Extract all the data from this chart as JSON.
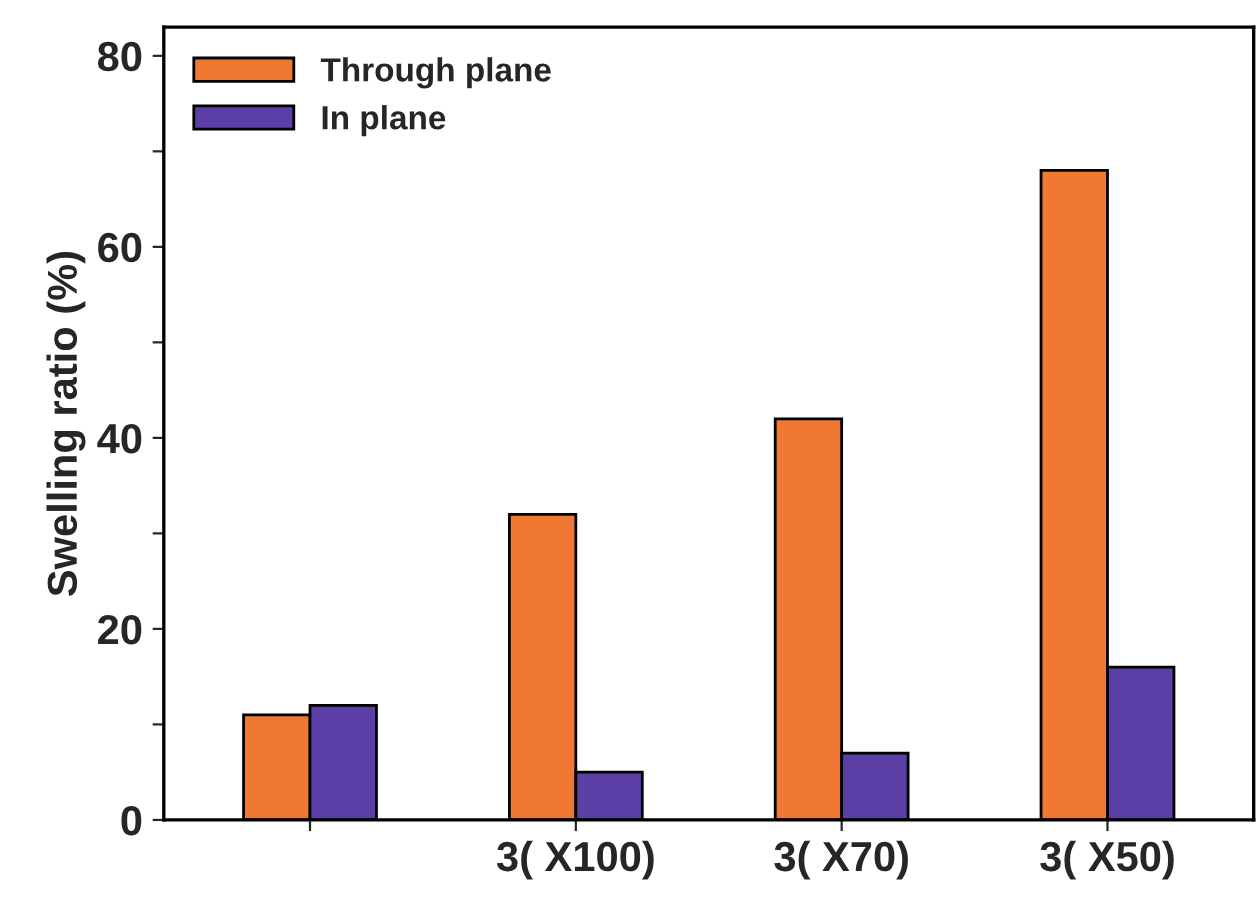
{
  "chart_data": {
    "type": "bar",
    "ylabel": "Swelling ratio (%)",
    "categories": [
      null,
      "3( X100)",
      "3( X70)",
      "3( X50)"
    ],
    "series": [
      {
        "name": "Through plane",
        "color": "#f07832",
        "values": [
          11,
          32,
          42,
          68
        ]
      },
      {
        "name": "In plane",
        "color": "#5b3fa6",
        "values": [
          12,
          5,
          7,
          16
        ]
      }
    ],
    "ylim": [
      0,
      83
    ],
    "yticks": [
      0,
      {
        "value": 10,
        "label": null
      },
      20,
      {
        "value": 30,
        "label": null
      },
      40,
      {
        "value": 50,
        "label": null
      },
      60,
      {
        "value": 70,
        "label": null
      },
      80
    ],
    "legend": "top left",
    "grid": false
  }
}
